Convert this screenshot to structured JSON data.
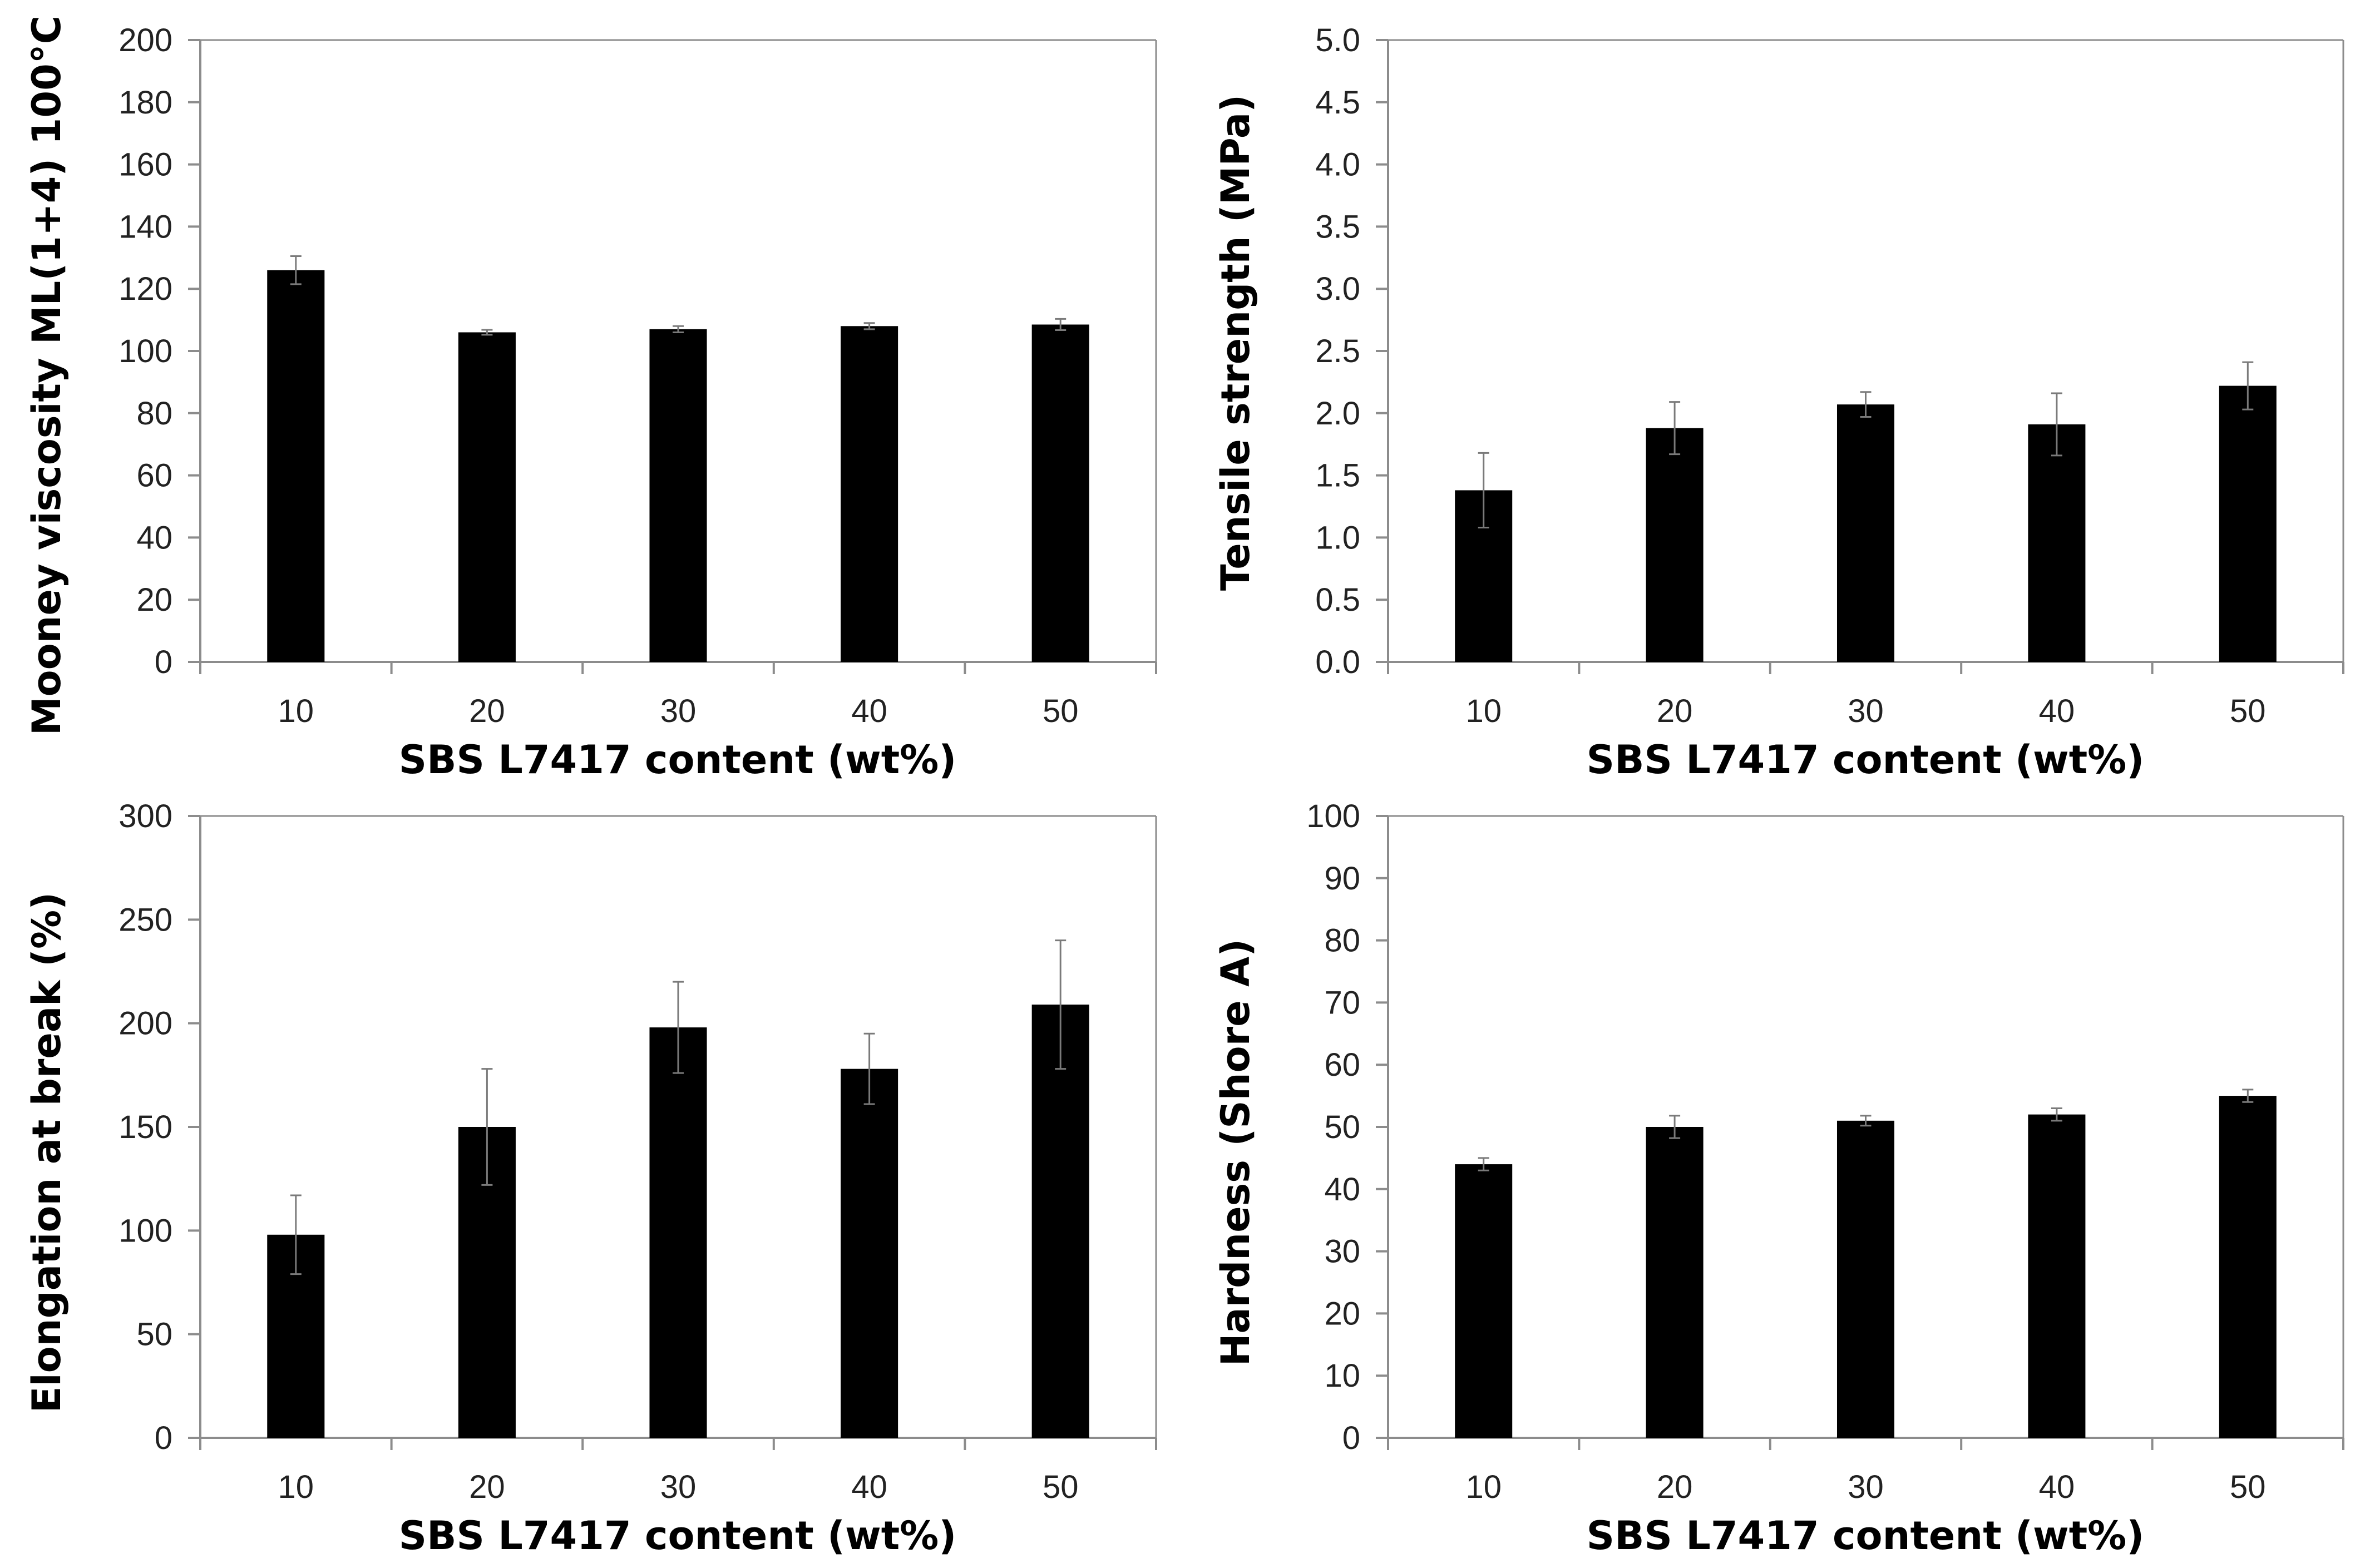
{
  "figure": {
    "bar_color": "#000000",
    "axis_color": "#8c8c8c",
    "text_color": "#222222"
  },
  "chart_data": [
    {
      "type": "bar",
      "id": "mooney",
      "categories": [
        "10",
        "20",
        "30",
        "40",
        "50"
      ],
      "values": [
        126,
        106,
        107,
        108,
        108.5
      ],
      "errors": [
        4.5,
        0.8,
        1,
        1,
        1.8
      ],
      "xlabel": "SBS L7417 content (wt%)",
      "ylabel": "Mooney viscosity ML(1+4) 100°C",
      "ylim": [
        0,
        200
      ],
      "yticks": [
        "0",
        "20",
        "40",
        "60",
        "80",
        "100",
        "120",
        "140",
        "160",
        "180",
        "200"
      ],
      "grid": false
    },
    {
      "type": "bar",
      "id": "tensile",
      "categories": [
        "10",
        "20",
        "30",
        "40",
        "50"
      ],
      "values": [
        1.38,
        1.88,
        2.07,
        1.91,
        2.22
      ],
      "errors": [
        0.3,
        0.21,
        0.1,
        0.25,
        0.19
      ],
      "xlabel": "SBS L7417 content (wt%)",
      "ylabel": "Tensile strength (MPa)",
      "ylim": [
        0,
        5
      ],
      "yticks": [
        "0.0",
        "0.5",
        "1.0",
        "1.5",
        "2.0",
        "2.5",
        "3.0",
        "3.5",
        "4.0",
        "4.5",
        "5.0"
      ],
      "grid": false
    },
    {
      "type": "bar",
      "id": "elongation",
      "categories": [
        "10",
        "20",
        "30",
        "40",
        "50"
      ],
      "values": [
        98,
        150,
        198,
        178,
        209
      ],
      "errors": [
        19,
        28,
        22,
        17,
        31
      ],
      "xlabel": "SBS L7417 content (wt%)",
      "ylabel": "Elongation at break (%)",
      "ylim": [
        0,
        300
      ],
      "yticks": [
        "0",
        "50",
        "100",
        "150",
        "200",
        "250",
        "300"
      ],
      "grid": false
    },
    {
      "type": "bar",
      "id": "hardness",
      "categories": [
        "10",
        "20",
        "30",
        "40",
        "50"
      ],
      "values": [
        44,
        50,
        51,
        52,
        55
      ],
      "errors": [
        1,
        1.8,
        0.8,
        1,
        1
      ],
      "xlabel": "SBS L7417 content (wt%)",
      "ylabel": "Hardness (Shore A)",
      "ylim": [
        0,
        100
      ],
      "yticks": [
        "0",
        "10",
        "20",
        "30",
        "40",
        "50",
        "60",
        "70",
        "80",
        "90",
        "100"
      ],
      "grid": false
    }
  ]
}
